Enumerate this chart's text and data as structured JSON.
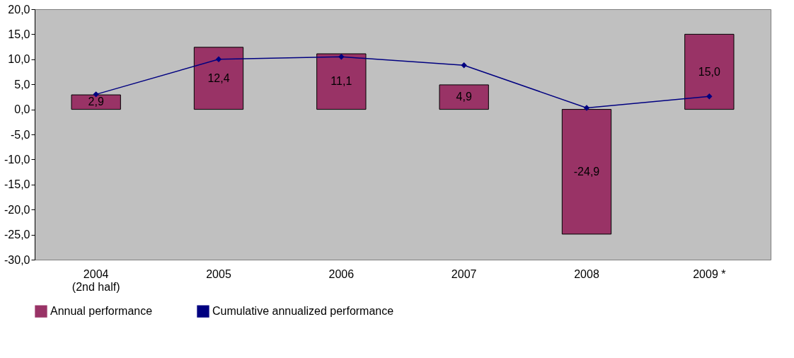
{
  "chart_data": {
    "type": "bar",
    "categories": [
      "2004\n(2nd half)",
      "2005",
      "2006",
      "2007",
      "2008",
      "2009 *"
    ],
    "series": [
      {
        "name": "Annual performance",
        "color": "#993366",
        "values": [
          2.9,
          12.4,
          11.1,
          4.9,
          -24.9,
          15.0
        ],
        "value_labels": [
          "2,9",
          "12,4",
          "11,1",
          "4,9",
          "-24,9",
          "15,0"
        ]
      },
      {
        "name": "Cumulative annualized performance",
        "type": "line",
        "color": "#000080",
        "marker": "diamond",
        "values": [
          3.0,
          10.0,
          10.5,
          8.8,
          0.3,
          2.6
        ]
      }
    ],
    "ylim": [
      -30,
      20
    ],
    "yticks": [
      {
        "value": -30,
        "label": "-30,0"
      },
      {
        "value": -25,
        "label": "-25,0"
      },
      {
        "value": -20,
        "label": "-20,0"
      },
      {
        "value": -15,
        "label": "-15,0"
      },
      {
        "value": -10,
        "label": "-10,0"
      },
      {
        "value": -5,
        "label": "-5,0"
      },
      {
        "value": 0,
        "label": "0,0"
      },
      {
        "value": 5,
        "label": "5,0"
      },
      {
        "value": 10,
        "label": "10,0"
      },
      {
        "value": 15,
        "label": "15,0"
      },
      {
        "value": 20,
        "label": "20,0"
      }
    ],
    "grid": false,
    "legend": "bottom"
  }
}
